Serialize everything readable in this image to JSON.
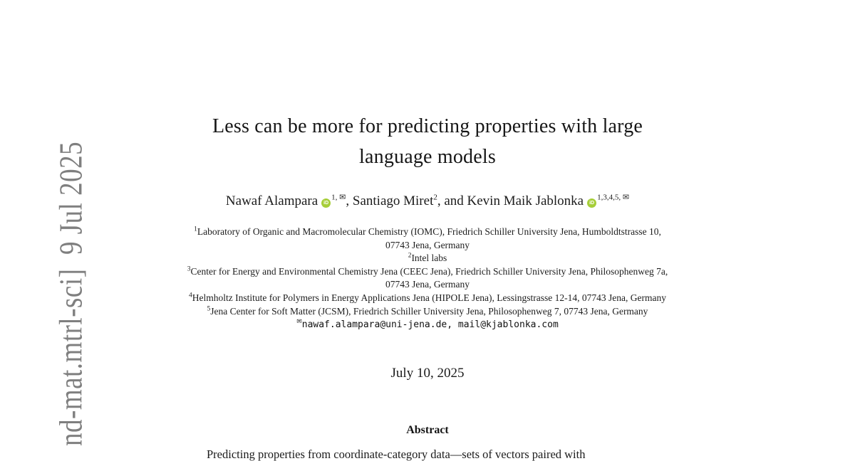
{
  "watermark": {
    "text": "nd-mat.mtrl-sci]  9 Jul 2025",
    "color": "#7f7f7f"
  },
  "title": {
    "lines": [
      "Less can be more for predicting properties with large",
      "language models"
    ]
  },
  "authors": {
    "orcid_icon": "iD",
    "orcid_color": "#A6CE39",
    "list": [
      {
        "name": "Nawaf Alampara",
        "sup": "1, ✉",
        "sep": ", "
      },
      {
        "name": "Santiago Miret",
        "sup": "2",
        "sep": ", and "
      },
      {
        "name": "Kevin Maik Jablonka",
        "sup": "1,3,4,5, ✉",
        "sep": ""
      }
    ]
  },
  "affiliations": [
    {
      "sup": "1",
      "text": "Laboratory of Organic and Macromolecular Chemistry (IOMC), Friedrich Schiller University Jena, Humboldtstrasse 10,"
    },
    {
      "sup": "",
      "text": "07743 Jena, Germany"
    },
    {
      "sup": "2",
      "text": "Intel labs"
    },
    {
      "sup": "3",
      "text": "Center for Energy and Environmental Chemistry Jena (CEEC Jena), Friedrich Schiller University Jena, Philosophenweg 7a,"
    },
    {
      "sup": "",
      "text": "07743 Jena, Germany"
    },
    {
      "sup": "4",
      "text": "Helmholtz Institute for Polymers in Energy Applications Jena (HIPOLE Jena), Lessingstrasse 12-14, 07743 Jena, Germany"
    },
    {
      "sup": "5",
      "text": "Jena Center for Soft Matter (JCSM), Friedrich Schiller University Jena, Philosophenweg 7, 07743 Jena, Germany"
    }
  ],
  "contact": {
    "icon": "✉",
    "emails": "nawaf.alampara@uni-jena.de, mail@kjablonka.com"
  },
  "date": "July 10, 2025",
  "abstract": {
    "heading": "Abstract",
    "first_line": "Predicting properties from coordinate-category data—sets of vectors paired with"
  }
}
